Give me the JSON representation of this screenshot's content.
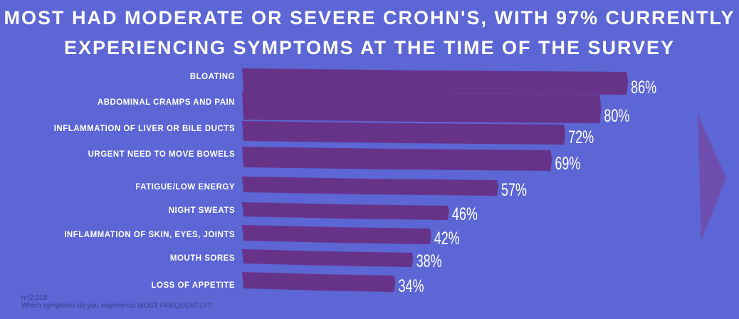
{
  "title_lines": [
    "Most had moderate or severe Crohn's, with 97% currently",
    "experiencing symptoms at the time of the survey"
  ],
  "footnote": {
    "sample": "n=2,018",
    "question": "Which symptoms do you experience MOST FREQUENTLY?"
  },
  "colors": {
    "background": "#5c66d4",
    "bar": "#663388",
    "arrow": "#6e4fb0",
    "text": "#ffffff"
  },
  "decoration": {
    "arrow": "right-pointing-triangle"
  },
  "chart_data": {
    "type": "bar",
    "orientation": "horizontal",
    "categories": [
      "BLOATING",
      "ABDOMINAL CRAMPS AND PAIN",
      "INFLAMMATION OF LIVER OR BILE DUCTS",
      "URGENT NEED TO MOVE BOWELS",
      "FATIGUE/LOW ENERGY",
      "NIGHT SWEATS",
      "INFLAMMATION OF SKIN, EYES, JOINTS",
      "MOUTH SORES",
      "LOSS OF APPETITE"
    ],
    "values": [
      86,
      80,
      72,
      69,
      57,
      46,
      42,
      38,
      34
    ],
    "value_labels": [
      "86%",
      "80%",
      "72%",
      "69%",
      "57%",
      "46%",
      "42%",
      "38%",
      "34%"
    ],
    "unit": "%",
    "grid": false,
    "legend": "none"
  }
}
